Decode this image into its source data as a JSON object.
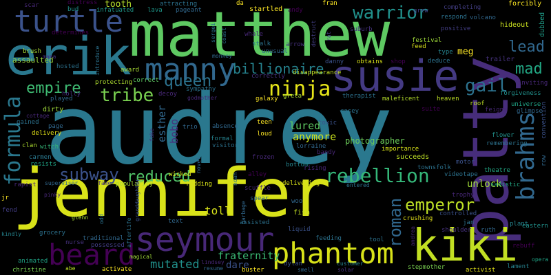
{
  "background": "#000000",
  "words": [
    {
      "text": "audrey",
      "color": "#2a788e"
    },
    {
      "text": "jennifer",
      "color": "#d8e219"
    },
    {
      "text": "matthew",
      "color": "#5ec962"
    },
    {
      "text": "patty",
      "color": "#472d7b"
    },
    {
      "text": "kiki",
      "color": "#c2df23"
    },
    {
      "text": "erik",
      "color": "#2a788e"
    },
    {
      "text": "susie",
      "color": "#443a83"
    },
    {
      "text": "turtle",
      "color": "#3b528b"
    },
    {
      "text": "seymour",
      "color": "#482878"
    },
    {
      "text": "phantom",
      "color": "#d8e219"
    },
    {
      "text": "manny",
      "color": "#31688e"
    },
    {
      "text": "beard",
      "color": "#440154"
    },
    {
      "text": "formula",
      "color": "#2a788e"
    },
    {
      "text": "brahms",
      "color": "#31688e"
    },
    {
      "text": "ninja",
      "color": "#e5e419"
    },
    {
      "text": "warrior",
      "color": "#21918c"
    },
    {
      "text": "rebellion",
      "color": "#35b779"
    },
    {
      "text": "emperor",
      "color": "#bddf26"
    },
    {
      "text": "queen",
      "color": "#2c728e"
    },
    {
      "text": "gail",
      "color": "#2c728e"
    },
    {
      "text": "empire",
      "color": "#3fbc73"
    },
    {
      "text": "tribe",
      "color": "#7ad151"
    },
    {
      "text": "billionaire",
      "color": "#26828e"
    },
    {
      "text": "subway",
      "color": "#3b528b"
    },
    {
      "text": "reduced",
      "color": "#52c569"
    },
    {
      "text": "roman",
      "color": "#31688e"
    },
    {
      "text": "mad",
      "color": "#22a884"
    },
    {
      "text": "lead",
      "color": "#31688e"
    },
    {
      "text": "mutated",
      "color": "#21918c"
    },
    {
      "text": "fraternity",
      "color": "#3bbb75"
    },
    {
      "text": "unlock",
      "color": "#a0da39"
    },
    {
      "text": "lured",
      "color": "#5ec962"
    },
    {
      "text": "anymore",
      "color": "#cae11f"
    },
    {
      "text": "toll",
      "color": "#d8e219"
    },
    {
      "text": "esther",
      "color": "#31688e"
    },
    {
      "text": "photographer",
      "color": "#6ccd5a"
    },
    {
      "text": "bobo",
      "color": "#46327e"
    },
    {
      "text": "dare",
      "color": "#3b528b"
    },
    {
      "text": "tooth",
      "color": "#b5de2b"
    },
    {
      "text": "meg",
      "color": "#fde725"
    },
    {
      "text": "hideout",
      "color": "#cae11f"
    },
    {
      "text": "dubbed",
      "color": "#1f9e89"
    },
    {
      "text": "forcibly",
      "color": "#fde725"
    },
    {
      "text": "trailer",
      "color": "#46327e"
    },
    {
      "text": "assaulted",
      "color": "#9bd93c"
    },
    {
      "text": "brush",
      "color": "#a8db34"
    },
    {
      "text": "scar",
      "color": "#482878"
    },
    {
      "text": "distress",
      "color": "#440154"
    },
    {
      "text": "bud",
      "color": "#21918c"
    },
    {
      "text": "infatuated",
      "color": "#1f988b"
    },
    {
      "text": "lava",
      "color": "#1f988b"
    },
    {
      "text": "pageant",
      "color": "#31688e"
    },
    {
      "text": "attracting",
      "color": "#2c728e"
    },
    {
      "text": "da",
      "color": "#fde725"
    },
    {
      "text": "startled",
      "color": "#fde725"
    },
    {
      "text": "fran",
      "color": "#fde725"
    },
    {
      "text": "andy",
      "color": "#440154"
    },
    {
      "text": "unusual",
      "color": "#31688e"
    },
    {
      "text": "determines",
      "color": "#440154"
    },
    {
      "text": "mama",
      "color": "#46327e"
    },
    {
      "text": "hosted",
      "color": "#2c728e"
    },
    {
      "text": "holly",
      "color": "#46327e"
    },
    {
      "text": "played",
      "color": "#31688e"
    },
    {
      "text": "gained",
      "color": "#2c728e"
    },
    {
      "text": "cottage",
      "color": "#482878"
    },
    {
      "text": "dirty",
      "color": "#a0da39"
    },
    {
      "text": "page",
      "color": "#31688e"
    },
    {
      "text": "delivery",
      "color": "#e5e419"
    },
    {
      "text": "clan",
      "color": "#addc30"
    },
    {
      "text": "witch",
      "color": "#35b779"
    },
    {
      "text": "carmen",
      "color": "#2a788e"
    },
    {
      "text": "resists",
      "color": "#20a486"
    },
    {
      "text": "rapist",
      "color": "#482878"
    },
    {
      "text": "supervisor",
      "color": "#31688e"
    },
    {
      "text": "fame",
      "color": "#46327e"
    },
    {
      "text": "popularity",
      "color": "#a8db34"
    },
    {
      "text": "jr",
      "color": "#fde725"
    },
    {
      "text": "fend",
      "color": "#433e85"
    },
    {
      "text": "kindly",
      "color": "#25848e"
    },
    {
      "text": "glenn",
      "color": "#a8db34"
    },
    {
      "text": "grocery",
      "color": "#2c728e"
    },
    {
      "text": "nurse",
      "color": "#46327e"
    },
    {
      "text": "traditional",
      "color": "#31688e"
    },
    {
      "text": "possessed",
      "color": "#433e85"
    },
    {
      "text": "animated",
      "color": "#20a486"
    },
    {
      "text": "christine",
      "color": "#7ad151"
    },
    {
      "text": "abe",
      "color": "#bddf26"
    },
    {
      "text": "magical",
      "color": "#a0da39"
    },
    {
      "text": "activate",
      "color": "#fde725"
    },
    {
      "text": "lindsey",
      "color": "#482878"
    },
    {
      "text": "resume",
      "color": "#31688e"
    },
    {
      "text": "buster",
      "color": "#fde725"
    },
    {
      "text": "dylan",
      "color": "#3b528b"
    },
    {
      "text": "smell",
      "color": "#31688e"
    },
    {
      "text": "customer",
      "color": "#26828e"
    },
    {
      "text": "solar",
      "color": "#46327e"
    },
    {
      "text": "stepmother",
      "color": "#7ad151"
    },
    {
      "text": "activist",
      "color": "#e5e419"
    },
    {
      "text": "lament",
      "color": "#26828e"
    },
    {
      "text": "opera",
      "color": "#20a486"
    },
    {
      "text": "rebuff",
      "color": "#440154"
    },
    {
      "text": "eastern",
      "color": "#21918c"
    },
    {
      "text": "plant",
      "color": "#25848e"
    },
    {
      "text": "ruth",
      "color": "#31688e"
    },
    {
      "text": "shoulder",
      "color": "#46327e"
    },
    {
      "text": "jan",
      "color": "#2c728e"
    },
    {
      "text": "controlled",
      "color": "#3b528b"
    },
    {
      "text": "crushing",
      "color": "#e5e419"
    },
    {
      "text": "trophy",
      "color": "#482878"
    },
    {
      "text": "sadistic",
      "color": "#22a884"
    },
    {
      "text": "motor",
      "color": "#3b528b"
    },
    {
      "text": "videotape",
      "color": "#2c728e"
    },
    {
      "text": "theatre",
      "color": "#22a884"
    },
    {
      "text": "townsfolk",
      "color": "#2c728e"
    },
    {
      "text": "succeeds",
      "color": "#bddf26"
    },
    {
      "text": "importance",
      "color": "#d8e219"
    },
    {
      "text": "flower",
      "color": "#21918c"
    },
    {
      "text": "remembering",
      "color": "#2c728e"
    },
    {
      "text": "row",
      "color": "#31688e"
    },
    {
      "text": "convention",
      "color": "#3b528b"
    },
    {
      "text": "universe",
      "color": "#20a486"
    },
    {
      "text": "glimpse",
      "color": "#31688e"
    },
    {
      "text": "feigns",
      "color": "#482878"
    },
    {
      "text": "suite",
      "color": "#440154"
    },
    {
      "text": "heaven",
      "color": "#bddf26"
    },
    {
      "text": "roof",
      "color": "#bddf26"
    },
    {
      "text": "forgiveness",
      "color": "#21918c"
    },
    {
      "text": "inviting",
      "color": "#482878"
    },
    {
      "text": "positive",
      "color": "#433e85"
    },
    {
      "text": "festival",
      "color": "#a0da39"
    },
    {
      "text": "feed",
      "color": "#d8e219"
    },
    {
      "text": "type",
      "color": "#26828e"
    },
    {
      "text": "respond",
      "color": "#2c728e"
    },
    {
      "text": "volcano",
      "color": "#31688e"
    },
    {
      "text": "completing",
      "color": "#433e85"
    },
    {
      "text": "grew",
      "color": "#433e85"
    },
    {
      "text": "suburb",
      "color": "#46327e"
    },
    {
      "text": "destruct",
      "color": "#433e85"
    },
    {
      "text": "rat",
      "color": "#433e85"
    },
    {
      "text": "obtains",
      "color": "#d8e219"
    },
    {
      "text": "shop",
      "color": "#440154"
    },
    {
      "text": "deduce",
      "color": "#2c728e"
    },
    {
      "text": "danny",
      "color": "#3b528b"
    },
    {
      "text": "disappearance",
      "color": "#c2df23"
    },
    {
      "text": "correctly",
      "color": "#46327e"
    },
    {
      "text": "therapist",
      "color": "#2c728e"
    },
    {
      "text": "maleficent",
      "color": "#b5de2b"
    },
    {
      "text": "greta",
      "color": "#a8db34"
    },
    {
      "text": "galaxy",
      "color": "#fde725"
    },
    {
      "text": "casey",
      "color": "#2c728e"
    },
    {
      "text": "teen",
      "color": "#fde725"
    },
    {
      "text": "toxic",
      "color": "#3b528b"
    },
    {
      "text": "loud",
      "color": "#fde725"
    },
    {
      "text": "lorraine",
      "color": "#31688e"
    },
    {
      "text": "frozen",
      "color": "#482878"
    },
    {
      "text": "bandy",
      "color": "#482878"
    },
    {
      "text": "bottom",
      "color": "#25848e"
    },
    {
      "text": "rising",
      "color": "#482878"
    },
    {
      "text": "delivering",
      "color": "#d8e219"
    },
    {
      "text": "entered",
      "color": "#2c728e"
    },
    {
      "text": "woo",
      "color": "#31688e"
    },
    {
      "text": "fish",
      "color": "#c2df23"
    },
    {
      "text": "liquid",
      "color": "#3b528b"
    },
    {
      "text": "feeding",
      "color": "#2c728e"
    },
    {
      "text": "tool",
      "color": "#2c728e"
    },
    {
      "text": "andrea",
      "color": "#482878"
    },
    {
      "text": "scuffle",
      "color": "#482878"
    },
    {
      "text": "noah",
      "color": "#2c728e"
    },
    {
      "text": "alley",
      "color": "#440154"
    },
    {
      "text": "spear",
      "color": "#31688e"
    },
    {
      "text": "garbage",
      "color": "#31688e"
    },
    {
      "text": "assisted",
      "color": "#2c728e"
    },
    {
      "text": "redding",
      "color": "#d8e219"
    },
    {
      "text": "wicked",
      "color": "#d8e219"
    },
    {
      "text": "novel",
      "color": "#31688e"
    },
    {
      "text": "text",
      "color": "#31688e"
    },
    {
      "text": "granddaughter",
      "color": "#3b528b"
    },
    {
      "text": "afterlife",
      "color": "#2c728e"
    },
    {
      "text": "odd",
      "color": "#2c728e"
    },
    {
      "text": "trio",
      "color": "#31688e"
    },
    {
      "text": "absence",
      "color": "#31688e"
    },
    {
      "text": "formal",
      "color": "#26828e"
    },
    {
      "text": "visitor",
      "color": "#2c728e"
    },
    {
      "text": "fake",
      "color": "#46327e"
    },
    {
      "text": "sympathy",
      "color": "#2c728e"
    },
    {
      "text": "godmother",
      "color": "#482878"
    },
    {
      "text": "decoy",
      "color": "#482878"
    },
    {
      "text": "protecting",
      "color": "#addc30"
    },
    {
      "text": "correct",
      "color": "#5ec962"
    },
    {
      "text": "award",
      "color": "#a8db34"
    },
    {
      "text": "introduce",
      "color": "#2c728e"
    },
    {
      "text": "monkey",
      "color": "#31688e"
    },
    {
      "text": "sergei",
      "color": "#2c728e"
    },
    {
      "text": "whale",
      "color": "#482878"
    },
    {
      "text": "stalk",
      "color": "#2c728e"
    },
    {
      "text": "arrow",
      "color": "#46327e"
    },
    {
      "text": "coast",
      "color": "#2c728e"
    },
    {
      "text": "pinky",
      "color": "#482878"
    }
  ]
}
